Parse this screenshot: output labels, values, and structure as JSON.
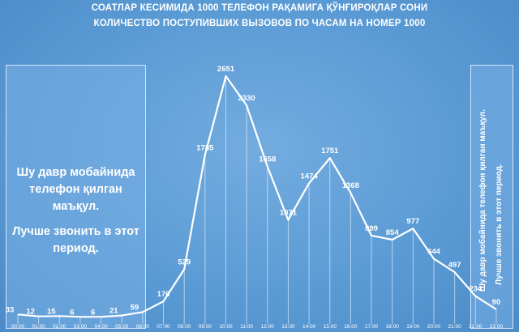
{
  "chart_data": {
    "type": "line",
    "title": "СОАТЛАР КЕСИМИДА 1000 ТЕЛЕФОН РАҚАМИГА ҚЎНҒИРОҚЛАР СОНИ",
    "subtitle": "КОЛИЧЕСТВО ПОСТУПИВШИХ ВЫЗОВОВ ПО ЧАСАМ НА НОМЕР 1000",
    "xlabel": "",
    "ylabel": "",
    "grid": false,
    "categories": [
      "00:00",
      "01:00",
      "02:00",
      "03:00",
      "04:00",
      "05:00",
      "06:00",
      "07:00",
      "08:00",
      "09:00",
      "10:00",
      "11:00",
      "12:00",
      "13:00",
      "14:00",
      "15:00",
      "16:00",
      "17:00",
      "18:00",
      "19:00",
      "20:00",
      "21:00",
      "22:00",
      "23:00"
    ],
    "values": [
      33,
      12,
      15,
      6,
      6,
      21,
      59,
      176,
      529,
      1785,
      2651,
      2330,
      1658,
      1071,
      1474,
      1751,
      1368,
      899,
      854,
      977,
      644,
      497,
      234,
      90
    ],
    "ylim": [
      0,
      2651
    ],
    "annotations": {
      "left_line1": "Шу давр мобайнида телефон қилган маъқул.",
      "left_line2": "Лучше звонить в этот период.",
      "right_line1": "Шу давр мобайнида телефон қилган маъқул.",
      "right_line2": "Лучше звонить в этот период."
    }
  }
}
